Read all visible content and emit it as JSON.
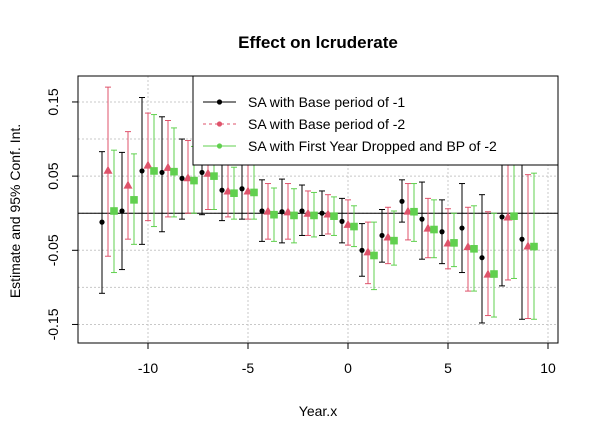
{
  "chart_data": {
    "type": "scatter",
    "title": "Effect on lcruderate",
    "xlabel": "Year.x",
    "ylabel": "Estimate and 95% Conf. Int.",
    "xlim": [
      -13.5,
      10.5
    ],
    "ylim": [
      -0.175,
      0.185
    ],
    "xticks": [
      -10,
      -5,
      0,
      5,
      10
    ],
    "xtick_labels": [
      "-10",
      "-5",
      "0",
      "5",
      "10"
    ],
    "yticks": [
      -0.15,
      -0.05,
      0.05,
      0.15
    ],
    "ytick_labels": [
      "-0.15",
      "-0.05",
      "0.05",
      "0.15"
    ],
    "grid": true,
    "reference_line_y": 0,
    "legend_position": "top-right",
    "series": [
      {
        "name": "SA with Base period of -1",
        "color": "#000000",
        "marker": "circle",
        "offset": -0.3,
        "x": [
          -12,
          -11,
          -10,
          -9,
          -8,
          -7,
          -6,
          -5,
          -4,
          -3,
          -2,
          -1,
          0,
          1,
          2,
          3,
          4,
          5,
          6,
          7,
          8,
          9
        ],
        "y": [
          -0.012,
          0.003,
          0.057,
          0.055,
          0.047,
          0.055,
          0.031,
          0.033,
          0.003,
          0.002,
          0.003,
          0.0,
          -0.011,
          -0.05,
          -0.03,
          0.016,
          -0.008,
          -0.025,
          -0.02,
          -0.06,
          -0.005,
          -0.035
        ],
        "lower": [
          -0.108,
          -0.076,
          -0.042,
          -0.025,
          -0.008,
          -0.002,
          -0.01,
          -0.008,
          -0.038,
          -0.04,
          -0.03,
          -0.03,
          -0.04,
          -0.085,
          -0.066,
          -0.012,
          -0.062,
          -0.068,
          -0.08,
          -0.148,
          -0.098,
          -0.143
        ],
        "upper": [
          0.083,
          0.082,
          0.156,
          0.13,
          0.1,
          0.102,
          0.075,
          0.075,
          0.045,
          0.046,
          0.038,
          0.03,
          0.02,
          -0.014,
          0.005,
          0.045,
          0.042,
          0.018,
          0.04,
          0.025,
          0.088,
          0.072
        ]
      },
      {
        "name": "SA with Base period of -2",
        "color": "#DF536B",
        "marker": "triangle",
        "offset": 0.0,
        "x": [
          -12,
          -11,
          -10,
          -9,
          -8,
          -7,
          -6,
          -5,
          -4,
          -3,
          -2,
          -1,
          0,
          1,
          2,
          3,
          4,
          5,
          6,
          7,
          8,
          9
        ],
        "y": [
          0.058,
          0.038,
          0.065,
          0.062,
          0.048,
          0.054,
          0.03,
          0.03,
          0.003,
          0.002,
          0.0,
          -0.001,
          -0.015,
          -0.052,
          -0.032,
          0.003,
          -0.02,
          -0.04,
          -0.045,
          -0.082,
          -0.005,
          -0.044
        ],
        "lower": [
          -0.058,
          -0.035,
          -0.01,
          -0.005,
          0.0,
          0.005,
          -0.005,
          -0.008,
          -0.035,
          -0.035,
          -0.03,
          -0.028,
          -0.043,
          -0.095,
          -0.068,
          -0.036,
          -0.06,
          -0.075,
          -0.105,
          -0.138,
          -0.09,
          -0.142
        ],
        "upper": [
          0.17,
          0.11,
          0.135,
          0.125,
          0.098,
          0.102,
          0.065,
          0.07,
          0.04,
          0.04,
          0.03,
          0.025,
          0.018,
          -0.012,
          0.008,
          0.04,
          0.02,
          0.006,
          0.008,
          0.002,
          0.073,
          0.052
        ]
      },
      {
        "name": "SA with First Year Dropped and BP of -2",
        "color": "#61D04F",
        "marker": "square",
        "offset": 0.3,
        "x": [
          -12,
          -11,
          -10,
          -9,
          -8,
          -7,
          -6,
          -5,
          -4,
          -3,
          -2,
          -1,
          0,
          1,
          2,
          3,
          4,
          5,
          6,
          7,
          8,
          9
        ],
        "y": [
          0.003,
          0.018,
          0.057,
          0.056,
          0.044,
          0.05,
          0.027,
          0.028,
          -0.002,
          -0.003,
          -0.003,
          -0.004,
          -0.018,
          -0.057,
          -0.037,
          0.002,
          -0.022,
          -0.04,
          -0.048,
          -0.082,
          -0.004,
          -0.045
        ],
        "lower": [
          -0.08,
          -0.042,
          -0.018,
          -0.005,
          0.0,
          0.005,
          -0.008,
          -0.008,
          -0.038,
          -0.04,
          -0.032,
          -0.03,
          -0.045,
          -0.103,
          -0.07,
          -0.038,
          -0.06,
          -0.072,
          -0.105,
          -0.14,
          -0.088,
          -0.143
        ],
        "upper": [
          0.085,
          0.08,
          0.133,
          0.115,
          0.09,
          0.095,
          0.062,
          0.065,
          0.034,
          0.033,
          0.028,
          0.022,
          0.01,
          -0.012,
          0.003,
          0.04,
          0.018,
          0.0,
          0.01,
          0.0,
          0.065,
          0.054
        ]
      }
    ]
  }
}
